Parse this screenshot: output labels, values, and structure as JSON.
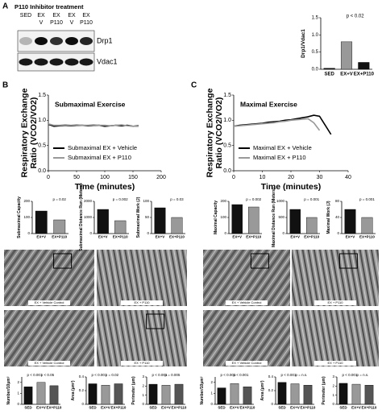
{
  "panel_labels": [
    "A",
    "B",
    "C"
  ],
  "blot": {
    "title": "P110 Inhibitor treatment",
    "lanes": [
      [
        "SED"
      ],
      [
        "EX",
        "V"
      ],
      [
        "EX",
        "P110"
      ],
      [
        "EX",
        "V"
      ],
      [
        "EX",
        "P110"
      ]
    ],
    "bands": [
      "Drp1",
      "Vdac1"
    ]
  },
  "micrographs": {
    "labels": [
      "EX + Vehicle Control",
      "EX + P110",
      "EX + Vehicle Control",
      "EX + P110",
      "EX + Vehicle Control",
      "EX + P110",
      "EX + Vehicle Control",
      "EX + P110"
    ]
  },
  "chart_data": [
    {
      "type": "bar",
      "ylabel": "Drp1/Vdac1",
      "categories": [
        "SED",
        "EX+V",
        "EX+P110"
      ],
      "values": [
        0.03,
        0.8,
        0.2
      ],
      "colors": [
        "#111111",
        "#999999",
        "#111111"
      ],
      "ylim": [
        0,
        1.5
      ],
      "yticks": [
        {
          "value": 0,
          "label": "0.0"
        },
        {
          "value": 0.5,
          "label": "0.5"
        },
        {
          "value": 1,
          "label": "1.0"
        },
        {
          "value": 1.5,
          "label": "1.5"
        }
      ],
      "annotations": [
        "p < 0.02"
      ]
    },
    {
      "type": "line",
      "title": "Submaximal Exercise",
      "ylabel": [
        "Respiratory Exchange",
        "Ratio (VCO2/VO2)"
      ],
      "xlabel": "Time (minutes)",
      "x": [
        0,
        10,
        20,
        30,
        40,
        50,
        60,
        70,
        80,
        90,
        100,
        110,
        120,
        130,
        140,
        150,
        160
      ],
      "series": [
        {
          "name": "Submaximal EX + Vehicle",
          "color": "#000000",
          "values": [
            0.92,
            0.88,
            0.89,
            0.9,
            0.89,
            0.9,
            0.9,
            0.89,
            0.9,
            0.9,
            0.88,
            0.89,
            0.9,
            0.89,
            0.9,
            0.88,
            0.89
          ]
        },
        {
          "name": "Submaximal EX + P110",
          "color": "#999999",
          "values": [
            0.93,
            0.9,
            0.9,
            0.91,
            0.9,
            0.91,
            0.9,
            0.9,
            0.91,
            0.9,
            0.9,
            0.89,
            0.9,
            0.91,
            0.89,
            0.88,
            0.88
          ]
        }
      ],
      "xlim": [
        0,
        200
      ],
      "xticks": [
        0,
        50,
        100,
        150,
        200
      ],
      "ylim": [
        0,
        1.5
      ],
      "yticks": [
        {
          "value": 0,
          "label": "0.0"
        },
        {
          "value": 0.5,
          "label": "0.5"
        },
        {
          "value": 1,
          "label": "1.0"
        },
        {
          "value": 1.5,
          "label": "1.5"
        }
      ]
    },
    {
      "type": "line",
      "title": "Maximal Exercise",
      "ylabel": [
        "Respiratory Exchange",
        "Ratio (VCO2/VO2)"
      ],
      "xlabel": "Time (minutes)",
      "x": [
        0,
        2,
        4,
        6,
        8,
        10,
        12,
        14,
        16,
        18,
        20,
        22,
        24,
        26,
        28,
        30,
        32,
        34
      ],
      "series": [
        {
          "name": "Maximal EX + Vehicle",
          "color": "#000000",
          "values": [
            0.88,
            0.9,
            0.91,
            0.92,
            0.93,
            0.94,
            0.96,
            0.97,
            0.98,
            1.0,
            1.01,
            1.03,
            1.05,
            1.07,
            1.1,
            1.08,
            0.9,
            0.72
          ]
        },
        {
          "name": "Maximal EX + P110",
          "color": "#999999",
          "values": [
            0.88,
            0.89,
            0.9,
            0.91,
            0.92,
            0.93,
            0.94,
            0.95,
            0.97,
            0.98,
            1.0,
            1.01,
            1.02,
            1.03,
            0.95,
            0.8,
            null,
            null
          ]
        }
      ],
      "xlim": [
        0,
        40
      ],
      "xticks": [
        0,
        10,
        20,
        30,
        40
      ],
      "ylim": [
        0,
        1.5
      ],
      "yticks": [
        {
          "value": 0,
          "label": "0.0"
        },
        {
          "value": 0.5,
          "label": "0.5"
        },
        {
          "value": 1,
          "label": "1.0"
        },
        {
          "value": 1.5,
          "label": "1.5"
        }
      ]
    },
    {
      "type": "bar",
      "ylabel": "Submaximal Capacity",
      "categories": [
        "EX+V",
        "EX+P110"
      ],
      "values": [
        140,
        85
      ],
      "colors": [
        "#111111",
        "#999999"
      ],
      "ylim": [
        0,
        200
      ],
      "yticks": [
        0,
        100,
        200
      ],
      "annotations": [
        "p = 0.02"
      ]
    },
    {
      "type": "bar",
      "ylabel": "Submaximal Distance Run (Meters)",
      "categories": [
        "EX+V",
        "EX+P110"
      ],
      "values": [
        1500,
        800
      ],
      "colors": [
        "#111111",
        "#999999"
      ],
      "ylim": [
        0,
        2000
      ],
      "yticks": [
        0,
        1000,
        2000
      ],
      "annotations": [
        "p = 0.002"
      ]
    },
    {
      "type": "bar",
      "ylabel": "Submaximal Work (J)",
      "categories": [
        "EX+V",
        "EX+P110"
      ],
      "values": [
        80,
        50
      ],
      "colors": [
        "#111111",
        "#999999"
      ],
      "ylim": [
        0,
        100
      ],
      "yticks": [
        0,
        50,
        100
      ],
      "annotations": [
        "p = 0.03"
      ]
    },
    {
      "type": "bar",
      "ylabel": "Maximal Capacity",
      "categories": [
        "EX+V",
        "EX+P110"
      ],
      "values": [
        180,
        165
      ],
      "colors": [
        "#111111",
        "#999999"
      ],
      "ylim": [
        0,
        200
      ],
      "yticks": [
        0,
        100,
        200
      ],
      "annotations": [
        "p = 0.002"
      ]
    },
    {
      "type": "bar",
      "ylabel": "Maximal Distance Run (Meters)",
      "categories": [
        "EX+V",
        "EX+P110"
      ],
      "values": [
        750,
        500
      ],
      "colors": [
        "#111111",
        "#999999"
      ],
      "ylim": [
        0,
        1000
      ],
      "yticks": [
        0,
        500,
        1000
      ],
      "annotations": [
        "p = 0.001"
      ]
    },
    {
      "type": "bar",
      "ylabel": "Maximal Work (J)",
      "categories": [
        "EX+V",
        "EX+P110"
      ],
      "values": [
        60,
        40
      ],
      "colors": [
        "#111111",
        "#999999"
      ],
      "ylim": [
        0,
        80
      ],
      "yticks": [
        0,
        40,
        80
      ],
      "annotations": [
        "p = 0.001"
      ]
    },
    {
      "type": "bar",
      "ylabel": "Number/10μm²",
      "categories": [
        "SED",
        "EX+V",
        "EX+P110"
      ],
      "values": [
        1.6,
        2.0,
        1.7
      ],
      "colors": [
        "#111111",
        "#999999",
        "#555555"
      ],
      "ylim": [
        0,
        2.5
      ],
      "yticks": [
        0,
        1,
        2
      ],
      "annotations": [
        "p < 0.001",
        "p < 0.05"
      ]
    },
    {
      "type": "bar",
      "ylabel": "Area (μm²)",
      "categories": [
        "SED",
        "EX+V",
        "EX+P110"
      ],
      "values": [
        0.3,
        0.28,
        0.3
      ],
      "colors": [
        "#111111",
        "#999999",
        "#555555"
      ],
      "ylim": [
        0,
        0.4
      ],
      "yticks": [
        0,
        0.2,
        0.4
      ],
      "annotations": [
        "p < 0.001",
        "p = 0.02"
      ]
    },
    {
      "type": "bar",
      "ylabel": "Perimeter (μm)",
      "categories": [
        "SED",
        "EX+V",
        "EX+P110"
      ],
      "values": [
        2.2,
        2.1,
        2.2
      ],
      "colors": [
        "#111111",
        "#999999",
        "#555555"
      ],
      "ylim": [
        0,
        3
      ],
      "yticks": [
        0,
        1,
        2,
        3
      ],
      "annotations": [
        "p < 0.001",
        "p = 0.005"
      ]
    },
    {
      "type": "bar",
      "ylabel": "Number/10μm²",
      "categories": [
        "SED",
        "EX+V",
        "EX+P110"
      ],
      "values": [
        1.5,
        1.9,
        1.6
      ],
      "colors": [
        "#111111",
        "#999999",
        "#555555"
      ],
      "ylim": [
        0,
        2.5
      ],
      "yticks": [
        0,
        1,
        2
      ],
      "annotations": [
        "p < 0.001",
        "p < 0.001"
      ]
    },
    {
      "type": "bar",
      "ylabel": "Area (μm²)",
      "categories": [
        "SED",
        "EX+V",
        "EX+P110"
      ],
      "values": [
        0.32,
        0.3,
        0.28
      ],
      "colors": [
        "#111111",
        "#999999",
        "#555555"
      ],
      "ylim": [
        0,
        0.4
      ],
      "yticks": [
        0,
        0.2,
        0.4
      ],
      "annotations": [
        "p < 0.001",
        "p = n.s."
      ]
    },
    {
      "type": "bar",
      "ylabel": "Perimeter (μm)",
      "categories": [
        "SED",
        "EX+V",
        "EX+P110"
      ],
      "values": [
        2.3,
        2.2,
        2.1
      ],
      "colors": [
        "#111111",
        "#999999",
        "#555555"
      ],
      "ylim": [
        0,
        3
      ],
      "yticks": [
        0,
        1,
        2,
        3
      ],
      "annotations": [
        "p < 0.001",
        "p = n.s."
      ]
    }
  ]
}
